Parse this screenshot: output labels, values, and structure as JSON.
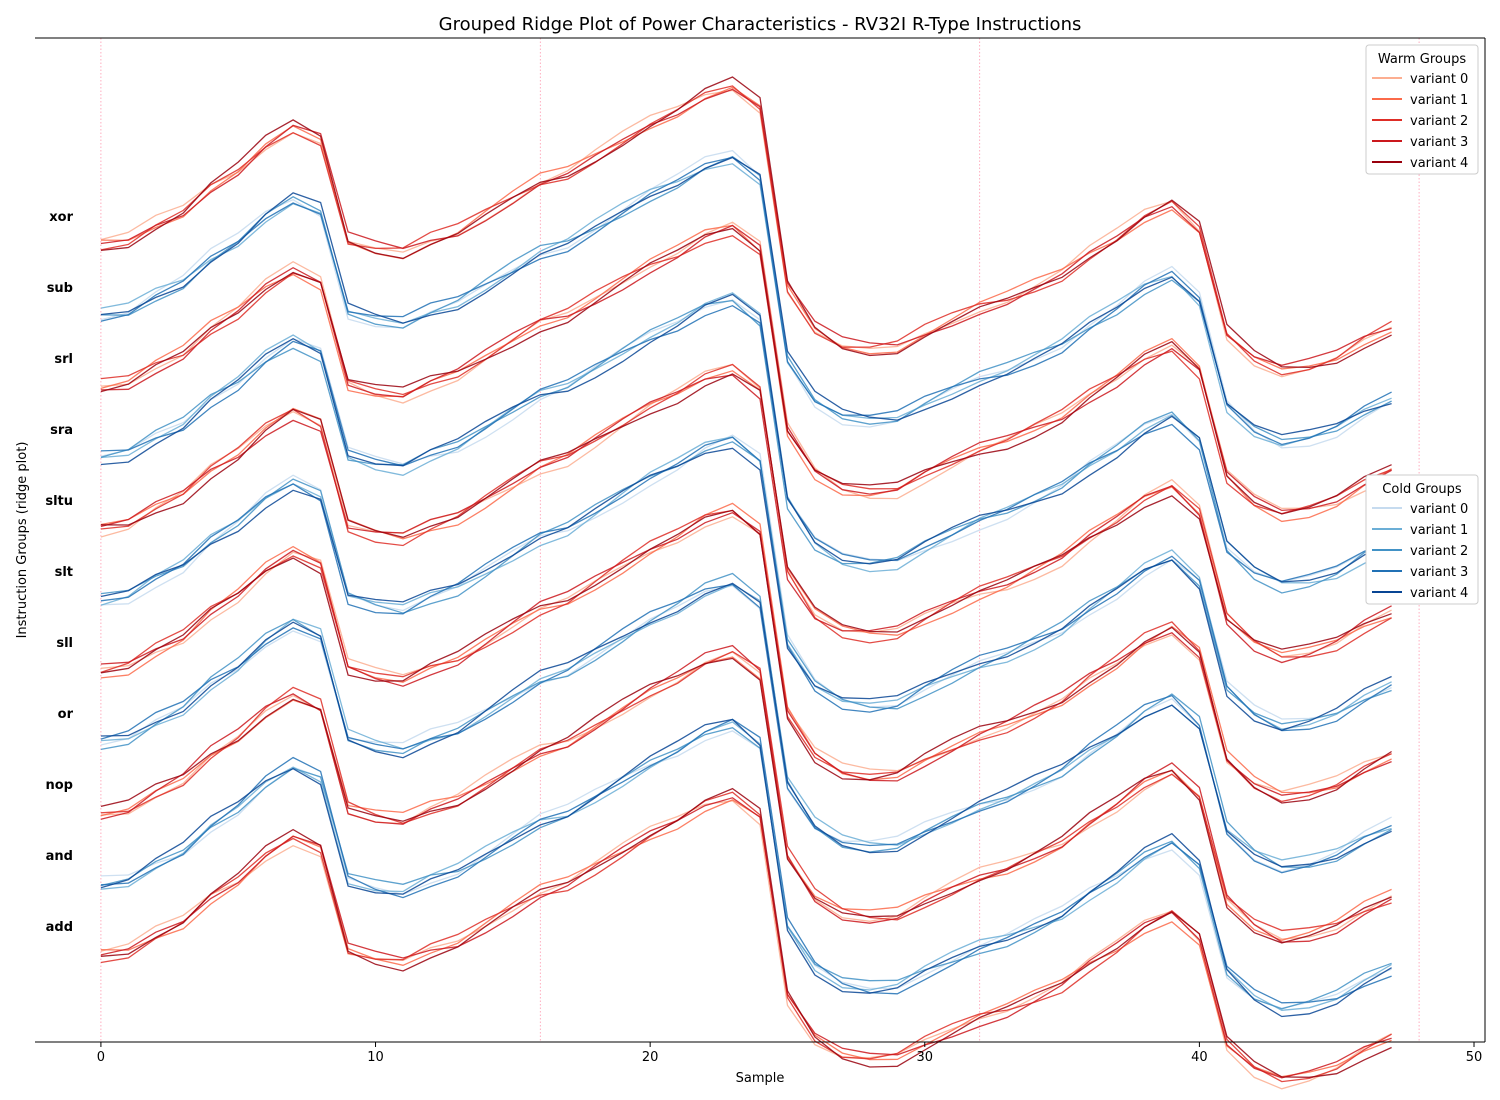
{
  "chart_data": {
    "type": "line",
    "title": "Grouped Ridge Plot of Power Characteristics - RV32I R-Type Instructions",
    "xlabel": "Sample",
    "ylabel": "Instruction Groups (ridge plot)",
    "xlim": [
      -2.4,
      50.4
    ],
    "xticks": [
      0,
      10,
      20,
      30,
      40,
      50
    ],
    "vlines": [
      0,
      16,
      32,
      48
    ],
    "grid": false,
    "groups": [
      "add",
      "and",
      "nop",
      "or",
      "sll",
      "slt",
      "sltu",
      "sra",
      "srl",
      "sub",
      "xor"
    ],
    "group_family": [
      "warm",
      "cold",
      "warm",
      "cold",
      "warm",
      "cold",
      "warm",
      "cold",
      "warm",
      "cold",
      "warm"
    ],
    "base_profile": [
      0.0,
      0.02,
      0.1,
      0.16,
      0.28,
      0.36,
      0.48,
      0.56,
      0.5,
      0.02,
      -0.02,
      -0.04,
      0.02,
      0.06,
      0.14,
      0.22,
      0.3,
      0.34,
      0.42,
      0.5,
      0.58,
      0.64,
      0.72,
      0.76,
      0.66,
      -0.2,
      -0.4,
      -0.48,
      -0.5,
      -0.49,
      -0.42,
      -0.36,
      -0.3,
      -0.26,
      -0.2,
      -0.14,
      -0.04,
      0.04,
      0.14,
      0.2,
      0.08,
      -0.42,
      -0.54,
      -0.6,
      -0.58,
      -0.54,
      -0.46,
      -0.4
    ],
    "legends": [
      {
        "title": "Warm Groups",
        "family": "warm",
        "labels": [
          "variant 0",
          "variant 1",
          "variant 2",
          "variant 3",
          "variant 4"
        ]
      },
      {
        "title": "Cold Groups",
        "family": "cold",
        "labels": [
          "variant 0",
          "variant 1",
          "variant 2",
          "variant 3",
          "variant 4"
        ]
      }
    ]
  },
  "colors": {
    "warm": [
      "#fcae91",
      "#fb6a4a",
      "#de2d26",
      "#cb181d",
      "#99000d"
    ],
    "cold": [
      "#c6dbef",
      "#6baed6",
      "#4292c6",
      "#2171b5",
      "#084594"
    ],
    "vline": "#ff8fa8",
    "axis": "#000000"
  }
}
